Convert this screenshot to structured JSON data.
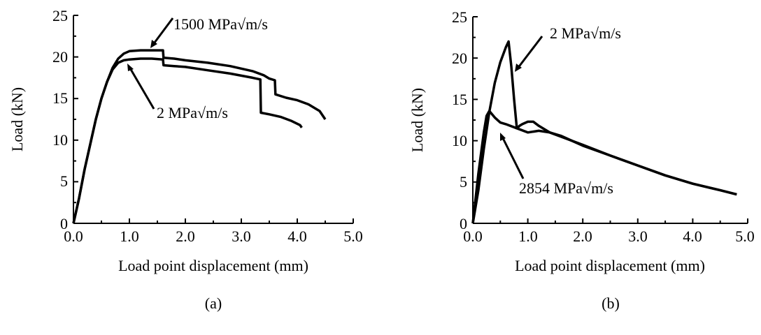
{
  "chart_data": [
    {
      "type": "line",
      "panel_label": "(a)",
      "xlabel": "Load point displacement (mm)",
      "ylabel": "Load (kN)",
      "xlim": [
        0,
        5
      ],
      "ylim": [
        0,
        25
      ],
      "x_ticks": [
        "0.0",
        "1.0",
        "2.0",
        "3.0",
        "4.0",
        "5.0"
      ],
      "y_ticks": [
        "0",
        "5",
        "10",
        "15",
        "20",
        "25"
      ],
      "grid": false,
      "series": [
        {
          "name": "1500 MPa√m/s",
          "x": [
            0.0,
            0.1,
            0.2,
            0.3,
            0.4,
            0.5,
            0.6,
            0.7,
            0.8,
            0.9,
            1.0,
            1.2,
            1.4,
            1.6,
            1.61,
            1.8,
            2.0,
            2.4,
            2.8,
            3.2,
            3.4,
            3.5,
            3.6,
            3.61,
            3.8,
            4.0,
            4.2,
            4.4,
            4.5
          ],
          "y": [
            0.0,
            3.0,
            6.5,
            9.5,
            12.5,
            15.0,
            17.0,
            18.7,
            19.8,
            20.4,
            20.7,
            20.8,
            20.8,
            20.8,
            19.9,
            19.8,
            19.6,
            19.3,
            18.9,
            18.3,
            17.8,
            17.4,
            17.2,
            15.5,
            15.1,
            14.8,
            14.3,
            13.5,
            12.5
          ]
        },
        {
          "name": "2 MPa√m/s",
          "x": [
            0.0,
            0.1,
            0.2,
            0.3,
            0.4,
            0.5,
            0.6,
            0.7,
            0.8,
            0.9,
            1.0,
            1.2,
            1.4,
            1.6,
            1.61,
            1.8,
            2.0,
            2.4,
            2.8,
            3.2,
            3.34,
            3.35,
            3.5,
            3.7,
            3.9,
            4.05,
            4.08
          ],
          "y": [
            0.0,
            3.0,
            6.5,
            9.5,
            12.5,
            15.0,
            17.0,
            18.5,
            19.3,
            19.6,
            19.7,
            19.8,
            19.8,
            19.7,
            19.0,
            18.9,
            18.8,
            18.4,
            18.0,
            17.5,
            17.3,
            13.3,
            13.1,
            12.8,
            12.3,
            11.8,
            11.5
          ]
        }
      ],
      "annotations": [
        "1500 MPa√m/s",
        "2 MPa√m/s"
      ]
    },
    {
      "type": "line",
      "panel_label": "(b)",
      "xlabel": "Load point displacement (mm)",
      "ylabel": "Load (kN)",
      "xlim": [
        0,
        5
      ],
      "ylim": [
        0,
        25
      ],
      "x_ticks": [
        "0.0",
        "1.0",
        "2.0",
        "3.0",
        "4.0",
        "5.0"
      ],
      "y_ticks": [
        "0",
        "5",
        "10",
        "15",
        "20",
        "25"
      ],
      "grid": false,
      "series": [
        {
          "name": "2 MPa√m/s",
          "x": [
            0.0,
            0.1,
            0.2,
            0.3,
            0.4,
            0.5,
            0.6,
            0.65,
            0.7,
            0.75,
            0.8,
            0.85,
            0.9,
            1.0,
            1.1,
            1.2,
            1.4,
            1.6,
            1.8,
            2.0,
            2.5,
            3.0,
            3.5,
            4.0,
            4.5,
            4.8
          ],
          "y": [
            0.0,
            4.0,
            9.0,
            13.5,
            17.0,
            19.5,
            21.3,
            22.0,
            19.0,
            15.0,
            11.5,
            11.8,
            12.0,
            12.3,
            12.3,
            11.8,
            11.0,
            10.6,
            10.0,
            9.4,
            8.2,
            7.0,
            5.8,
            4.8,
            4.0,
            3.5
          ]
        },
        {
          "name": "2854 MPa√m/s",
          "x": [
            0.0,
            0.1,
            0.2,
            0.25,
            0.3,
            0.35,
            0.4,
            0.5,
            0.6,
            0.8,
            1.0,
            1.2,
            1.4,
            1.6,
            1.8,
            2.0,
            2.5,
            3.0,
            3.5,
            4.0,
            4.5,
            4.8
          ],
          "y": [
            0.0,
            6.0,
            11.0,
            13.0,
            13.6,
            13.2,
            12.8,
            12.2,
            12.0,
            11.5,
            11.0,
            11.2,
            11.0,
            10.5,
            10.0,
            9.5,
            8.2,
            7.0,
            5.8,
            4.8,
            4.0,
            3.5
          ]
        }
      ],
      "annotations": [
        "2 MPa√m/s",
        "2854 MPa√m/s"
      ]
    }
  ]
}
